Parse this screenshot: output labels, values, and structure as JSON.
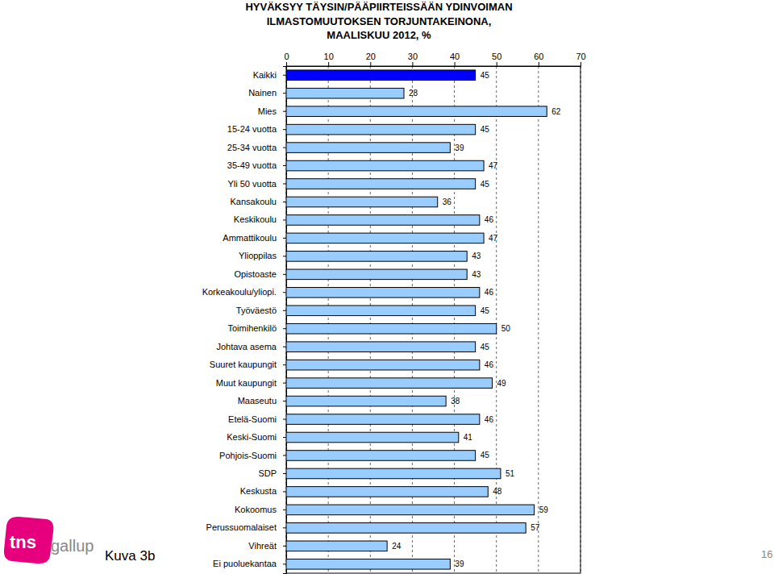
{
  "chart_data": {
    "type": "bar",
    "orientation": "horizontal",
    "title": "HYVÄKSYY TÄYSIN/PÄÄPIIRTEISSÄÄN YDINVOIMAN\nILMASTOMUUTOKSEN TORJUNTAKEINONA,\nMAALISKUU 2012, %",
    "categories": [
      "Kaikki",
      "Nainen",
      "Mies",
      "15-24 vuotta",
      "25-34 vuotta",
      "35-49 vuotta",
      "Yli 50 vuotta",
      "Kansakoulu",
      "Keskikoulu",
      "Ammattikoulu",
      "Ylioppilas",
      "Opistoaste",
      "Korkeakoulu/yliopi.",
      "Työväestö",
      "Toimihenkilö",
      "Johtava asema",
      "Suuret kaupungit",
      "Muut kaupungit",
      "Maaseutu",
      "Etelä-Suomi",
      "Keski-Suomi",
      "Pohjois-Suomi",
      "SDP",
      "Keskusta",
      "Kokoomus",
      "Perussuomalaiset",
      "Vihreät",
      "Ei puoluekantaa"
    ],
    "values": [
      45,
      28,
      62,
      45,
      39,
      47,
      45,
      36,
      46,
      47,
      43,
      43,
      46,
      45,
      50,
      45,
      46,
      49,
      38,
      46,
      41,
      45,
      51,
      48,
      59,
      57,
      24,
      39
    ],
    "colors": [
      "#0000ff",
      "#99ccff",
      "#99ccff",
      "#99ccff",
      "#99ccff",
      "#99ccff",
      "#99ccff",
      "#99ccff",
      "#99ccff",
      "#99ccff",
      "#99ccff",
      "#99ccff",
      "#99ccff",
      "#99ccff",
      "#99ccff",
      "#99ccff",
      "#99ccff",
      "#99ccff",
      "#99ccff",
      "#99ccff",
      "#99ccff",
      "#99ccff",
      "#99ccff",
      "#99ccff",
      "#99ccff",
      "#99ccff",
      "#99ccff",
      "#99ccff"
    ],
    "xlim": [
      0,
      70
    ],
    "xticks": [
      0,
      10,
      20,
      30,
      40,
      50,
      60,
      70
    ],
    "grid": true,
    "data_labels": true,
    "annotations": [
      "Kuva 3b",
      "16",
      "tns",
      "gallup"
    ]
  }
}
